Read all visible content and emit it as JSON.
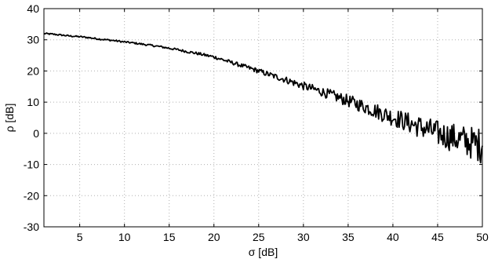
{
  "chart_data": {
    "type": "line",
    "title": "",
    "xlabel": "σ [dB]",
    "ylabel": "ρ [dB]",
    "xlim": [
      1,
      50
    ],
    "ylim": [
      -30,
      40
    ],
    "xticks": [
      5,
      10,
      15,
      20,
      25,
      30,
      35,
      40,
      45,
      50
    ],
    "yticks": [
      -30,
      -20,
      -10,
      0,
      10,
      20,
      30,
      40
    ],
    "grid": true,
    "legend": "none",
    "line_color": "#000000",
    "series": [
      {
        "x": [
          1,
          2,
          3,
          4,
          5,
          6,
          7,
          8,
          9,
          10,
          11,
          12,
          13,
          14,
          15,
          16,
          17,
          18,
          19,
          20,
          21,
          22,
          23,
          24,
          25,
          26,
          27,
          28,
          29,
          30,
          31,
          32,
          33,
          34,
          35,
          36,
          37,
          38,
          39,
          40,
          41,
          42,
          43,
          44,
          45,
          46,
          47,
          48,
          49,
          50
        ],
        "values": [
          32,
          31.8,
          31.5,
          31.2,
          31,
          30.7,
          30.3,
          30,
          29.7,
          29.3,
          29,
          28.6,
          28.2,
          27.8,
          27.3,
          26.8,
          26.2,
          25.7,
          25.1,
          24.5,
          23.6,
          22.7,
          21.8,
          20.9,
          20,
          19,
          18.1,
          17.2,
          16.2,
          15.2,
          14.3,
          13.4,
          12.4,
          11.4,
          10.4,
          9.4,
          8.4,
          7.3,
          6.2,
          5.2,
          4.2,
          3.1,
          2.1,
          1.1,
          0,
          -0.8,
          -1.6,
          -2.4,
          -3.2,
          -4
        ]
      }
    ]
  }
}
